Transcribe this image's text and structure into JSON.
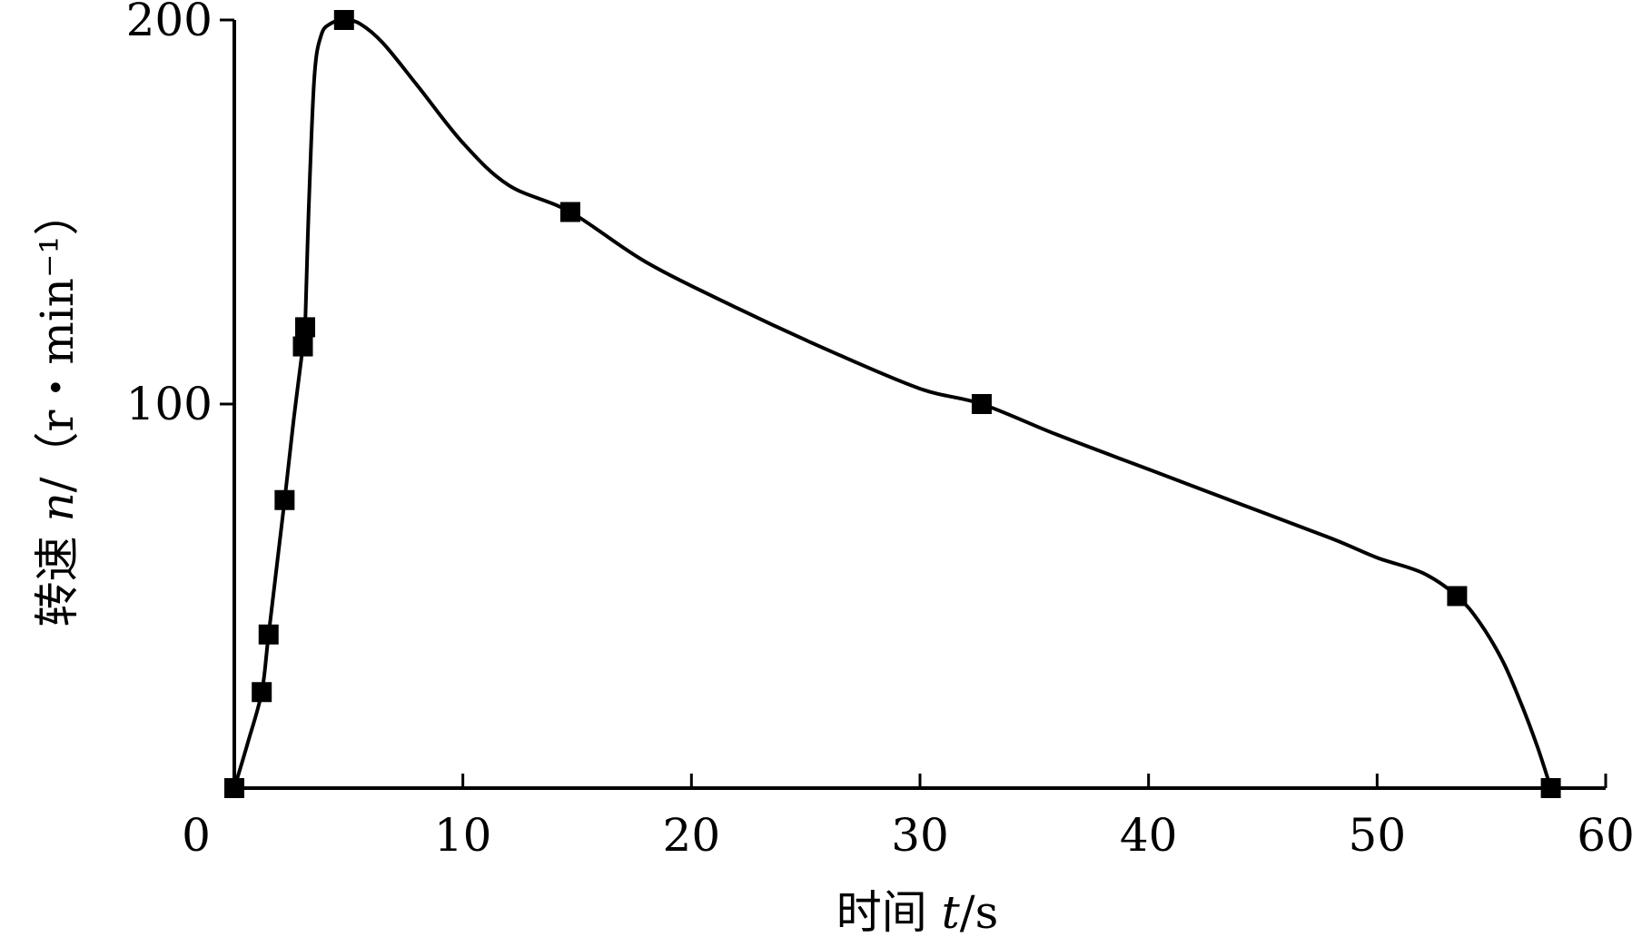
{
  "chart_data": {
    "type": "line",
    "title": "",
    "xlabel": {
      "prefix": "时间 ",
      "var": "t",
      "unit": "/s"
    },
    "ylabel": {
      "prefix": "转速 ",
      "var": "n",
      "unit": "/（r・min⁻¹）"
    },
    "xlim": [
      0,
      60
    ],
    "ylim": [
      0,
      200
    ],
    "x_ticks": [
      0,
      10,
      20,
      30,
      40,
      50,
      60
    ],
    "x_tick_labels": [
      "0",
      "10",
      "20",
      "30",
      "40",
      "50",
      "60"
    ],
    "y_ticks": [
      100,
      200
    ],
    "y_tick_labels": [
      "100",
      "200"
    ],
    "grid": false,
    "legend": "none",
    "series": [
      {
        "x": [
          0,
          1.2,
          1.5,
          2.2,
          3.0,
          3.1,
          4.8,
          14.7,
          32.7,
          53.5,
          57.6
        ],
        "y": [
          0,
          25,
          40,
          75,
          115,
          120,
          200,
          150,
          100,
          50,
          0
        ]
      }
    ],
    "curve_shape": {
      "x": [
        0,
        0.6,
        1.2,
        1.5,
        2.2,
        2.6,
        3.0,
        3.1,
        3.25,
        3.5,
        3.8,
        4.2,
        4.8,
        5.5,
        6.5,
        8,
        10,
        12,
        14.7,
        18,
        22,
        26,
        30,
        32.7,
        36,
        40,
        44,
        48,
        50,
        52,
        53.5,
        54.5,
        55.5,
        56.3,
        57.0,
        57.6
      ],
      "y": [
        0,
        12,
        25,
        40,
        75,
        96,
        115,
        120,
        150,
        185,
        196,
        199,
        200,
        199,
        194,
        183,
        168,
        157,
        150,
        137,
        125,
        114,
        104,
        100,
        92,
        83,
        74,
        65,
        60,
        56,
        50,
        43,
        33,
        22,
        11,
        0
      ]
    }
  }
}
